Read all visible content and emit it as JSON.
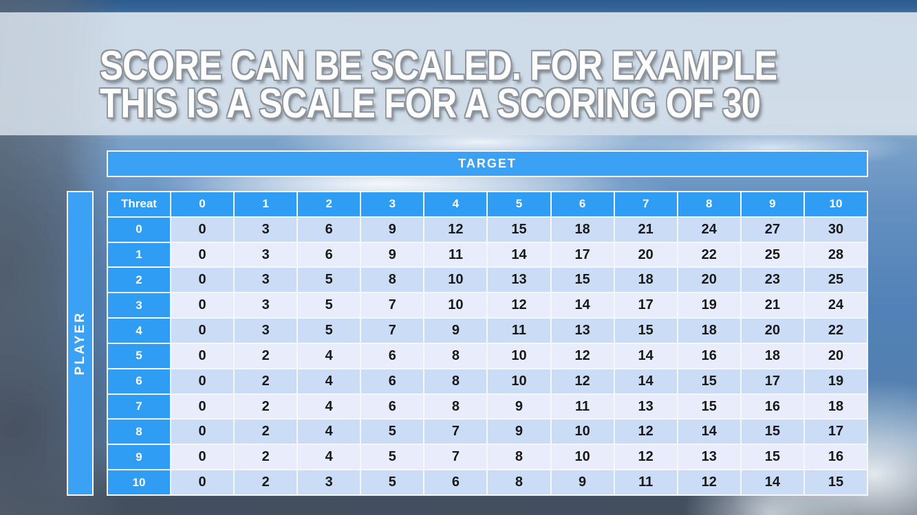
{
  "slide": {
    "title_line1": "SCORE CAN BE SCALED. FOR EXAMPLE",
    "title_line2": "THIS IS A SCALE FOR A SCORING OF 30"
  },
  "axes": {
    "target_label": "TARGET",
    "player_label": "PLAYER"
  },
  "table": {
    "corner_label": "Threat",
    "target_values": [
      "0",
      "1",
      "2",
      "3",
      "4",
      "5",
      "6",
      "7",
      "8",
      "9",
      "10"
    ],
    "rows": [
      {
        "player": "0",
        "scores": [
          0,
          3,
          6,
          9,
          12,
          15,
          18,
          21,
          24,
          27,
          30
        ]
      },
      {
        "player": "1",
        "scores": [
          0,
          3,
          6,
          9,
          11,
          14,
          17,
          20,
          22,
          25,
          28
        ]
      },
      {
        "player": "2",
        "scores": [
          0,
          3,
          5,
          8,
          10,
          13,
          15,
          18,
          20,
          23,
          25
        ]
      },
      {
        "player": "3",
        "scores": [
          0,
          3,
          5,
          7,
          10,
          12,
          14,
          17,
          19,
          21,
          24
        ]
      },
      {
        "player": "4",
        "scores": [
          0,
          3,
          5,
          7,
          9,
          11,
          13,
          15,
          18,
          20,
          22
        ]
      },
      {
        "player": "5",
        "scores": [
          0,
          2,
          4,
          6,
          8,
          10,
          12,
          14,
          16,
          18,
          20
        ]
      },
      {
        "player": "6",
        "scores": [
          0,
          2,
          4,
          6,
          8,
          10,
          12,
          14,
          15,
          17,
          19
        ]
      },
      {
        "player": "7",
        "scores": [
          0,
          2,
          4,
          6,
          8,
          9,
          11,
          13,
          15,
          16,
          18
        ]
      },
      {
        "player": "8",
        "scores": [
          0,
          2,
          4,
          5,
          7,
          9,
          10,
          12,
          14,
          15,
          17
        ]
      },
      {
        "player": "9",
        "scores": [
          0,
          2,
          4,
          5,
          7,
          8,
          10,
          12,
          13,
          15,
          16
        ]
      },
      {
        "player": "10",
        "scores": [
          0,
          2,
          3,
          5,
          6,
          8,
          9,
          11,
          12,
          14,
          15
        ]
      }
    ]
  },
  "colors": {
    "accent_blue": "#3aa1f5",
    "row_band_a": "#cbdcf7",
    "row_band_b": "#e9edfb",
    "title_text": "#ffffff"
  }
}
